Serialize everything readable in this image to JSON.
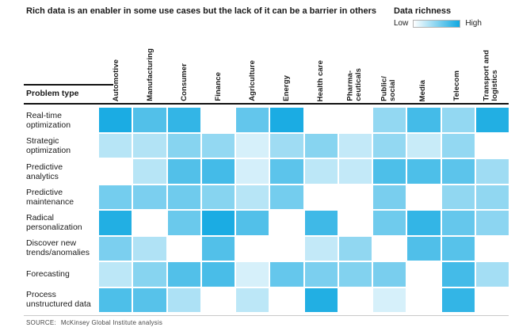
{
  "header": {
    "title": "Rich data is an enabler in some use cases but the lack of it can be a barrier in others"
  },
  "legend": {
    "title": "Data richness",
    "low_label": "Low",
    "high_label": "High"
  },
  "table": {
    "row_header": "Problem type"
  },
  "footer": {
    "source_prefix": "SOURCE:",
    "source_text": "McKinsey Global Institute analysis"
  },
  "colors": {
    "scale_low": "#ffffff",
    "scale_high": "#0fa8e1",
    "rule_dark": "#111111",
    "rule_light": "#c9c9c9"
  },
  "chart_data": {
    "type": "heatmap",
    "title": "Rich data is an enabler in some use cases but the lack of it can be a barrier in others",
    "legend": {
      "title": "Data richness",
      "low": "Low",
      "high": "High",
      "position": "top-right"
    },
    "value_range": [
      0,
      1
    ],
    "columns": [
      "Automotive",
      "Manufacturing",
      "Consumer",
      "Finance",
      "Agriculture",
      "Energy",
      "Health care",
      "Pharma-\nceuticals",
      "Public/\nsocial",
      "Media",
      "Telecom",
      "Transport and\nlogistics"
    ],
    "rows": [
      "Real-time\noptimization",
      "Strategic\noptimization",
      "Predictive\nanalytics",
      "Predictive\nmaintenance",
      "Radical\npersonalization",
      "Discover new\ntrends/anomalies",
      "Forecasting",
      "Process\nunstructured data"
    ],
    "values": [
      [
        0.95,
        0.72,
        0.85,
        0.0,
        0.65,
        0.95,
        0.0,
        0.0,
        0.45,
        0.78,
        0.45,
        0.92
      ],
      [
        0.3,
        0.32,
        0.5,
        0.45,
        0.17,
        0.4,
        0.5,
        0.25,
        0.45,
        0.23,
        0.45,
        0.0
      ],
      [
        0.0,
        0.3,
        0.72,
        0.78,
        0.18,
        0.68,
        0.28,
        0.25,
        0.74,
        0.74,
        0.68,
        0.4
      ],
      [
        0.58,
        0.55,
        0.6,
        0.5,
        0.3,
        0.58,
        0.0,
        0.0,
        0.56,
        0.0,
        0.46,
        0.46
      ],
      [
        0.92,
        0.0,
        0.62,
        0.95,
        0.72,
        0.0,
        0.8,
        0.0,
        0.6,
        0.85,
        0.64,
        0.48
      ],
      [
        0.55,
        0.33,
        0.0,
        0.72,
        0.0,
        0.0,
        0.25,
        0.46,
        0.0,
        0.73,
        0.7,
        0.0
      ],
      [
        0.28,
        0.5,
        0.72,
        0.76,
        0.17,
        0.64,
        0.55,
        0.52,
        0.56,
        0.0,
        0.78,
        0.38
      ],
      [
        0.74,
        0.7,
        0.34,
        0.0,
        0.28,
        0.0,
        0.92,
        0.0,
        0.17,
        0.0,
        0.85,
        0.0
      ]
    ]
  }
}
